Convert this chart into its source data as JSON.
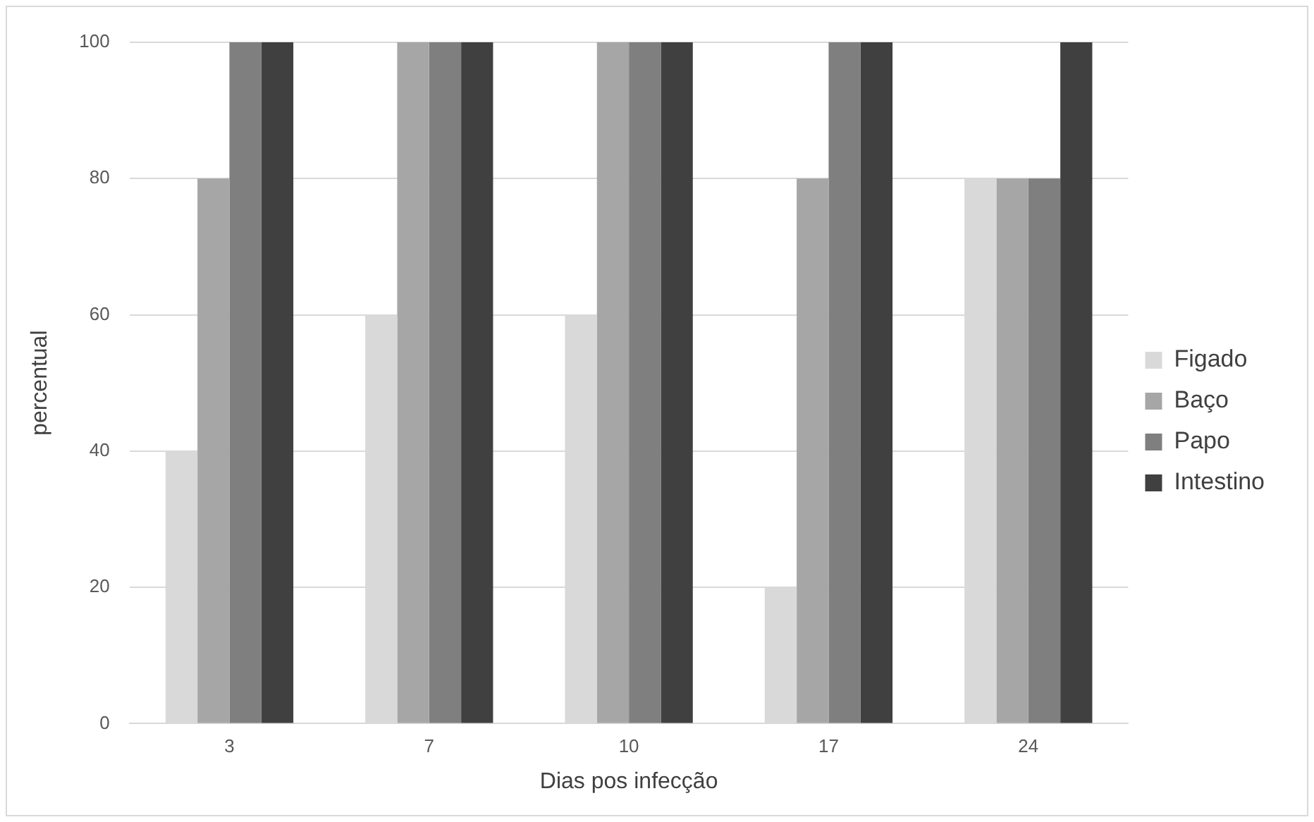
{
  "chart_data": {
    "type": "bar",
    "xlabel": "Dias pos infecção",
    "ylabel": "percentual",
    "categories": [
      "3",
      "7",
      "10",
      "17",
      "24"
    ],
    "series": [
      {
        "name": "Figado",
        "color": "#d9d9d9",
        "values": [
          40,
          60,
          60,
          20,
          80
        ]
      },
      {
        "name": "Baço",
        "color": "#a6a6a6",
        "values": [
          80,
          100,
          100,
          80,
          80
        ]
      },
      {
        "name": "Papo",
        "color": "#7f7f7f",
        "values": [
          100,
          100,
          100,
          100,
          80
        ]
      },
      {
        "name": "Intestino",
        "color": "#404040",
        "values": [
          100,
          100,
          100,
          100,
          100
        ]
      }
    ],
    "ylim": [
      0,
      100
    ],
    "yticks": [
      0,
      20,
      40,
      60,
      80,
      100
    ],
    "grid": "y",
    "legend": "right"
  }
}
